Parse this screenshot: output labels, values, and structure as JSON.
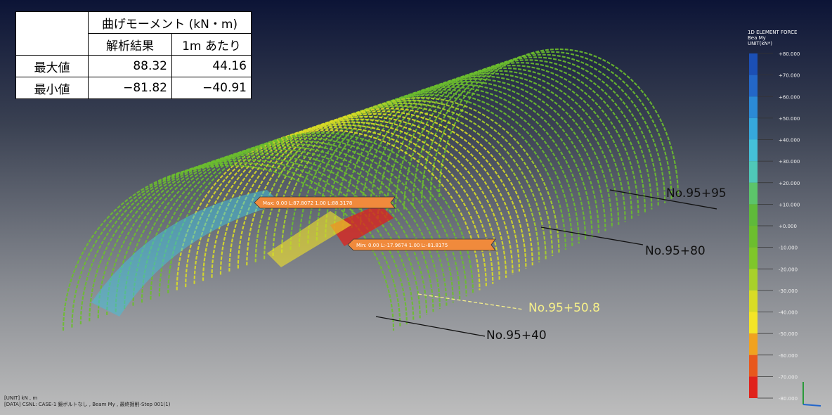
{
  "table": {
    "header": "曲げモーメント (kN・m)",
    "subheaders": [
      "解析結果",
      "1m あたり"
    ],
    "rows": [
      [
        "最大値",
        "88.32",
        "44.16"
      ],
      [
        "最小値",
        "−81.82",
        "−40.91"
      ]
    ]
  },
  "tags": {
    "max": "Max: 0.00 L:87.8072  1.00 L:88.3178",
    "min": "Min: 0.00 L:-17.9674  1.00 L:-81.8175"
  },
  "annotations": [
    "No.95+95",
    "No.95+80",
    "No.95+50.8",
    "No.95+40"
  ],
  "legend": {
    "title": [
      "1D ELEMENT FORCE",
      "Bea My",
      "UNIT(kN*)"
    ],
    "labels": [
      "+80.000",
      "+70.000",
      "+60.000",
      "+50.000",
      "+40.000",
      "+30.000",
      "+20.000",
      "+10.000",
      "+0.000",
      "-10.000",
      "-20.000",
      "-30.000",
      "-40.000",
      "-50.000",
      "-60.000",
      "-70.000",
      "-80.000"
    ],
    "colors": [
      "#1b4fb5",
      "#2367c8",
      "#2b8ad6",
      "#36a8dc",
      "#45c0d8",
      "#4fc8b8",
      "#5cc46a",
      "#5fba3a",
      "#6cbe2e",
      "#7fc62a",
      "#a8d12a",
      "#d8dc26",
      "#f4e526",
      "#f0a21f",
      "#e8581c",
      "#e0221b"
    ]
  },
  "footer": [
    "[UNIT] kN , m",
    "[DATA] CSNL: CASE-1 鏡ボルトなし , Beam My , 最終掘削-Step 001(1)"
  ]
}
